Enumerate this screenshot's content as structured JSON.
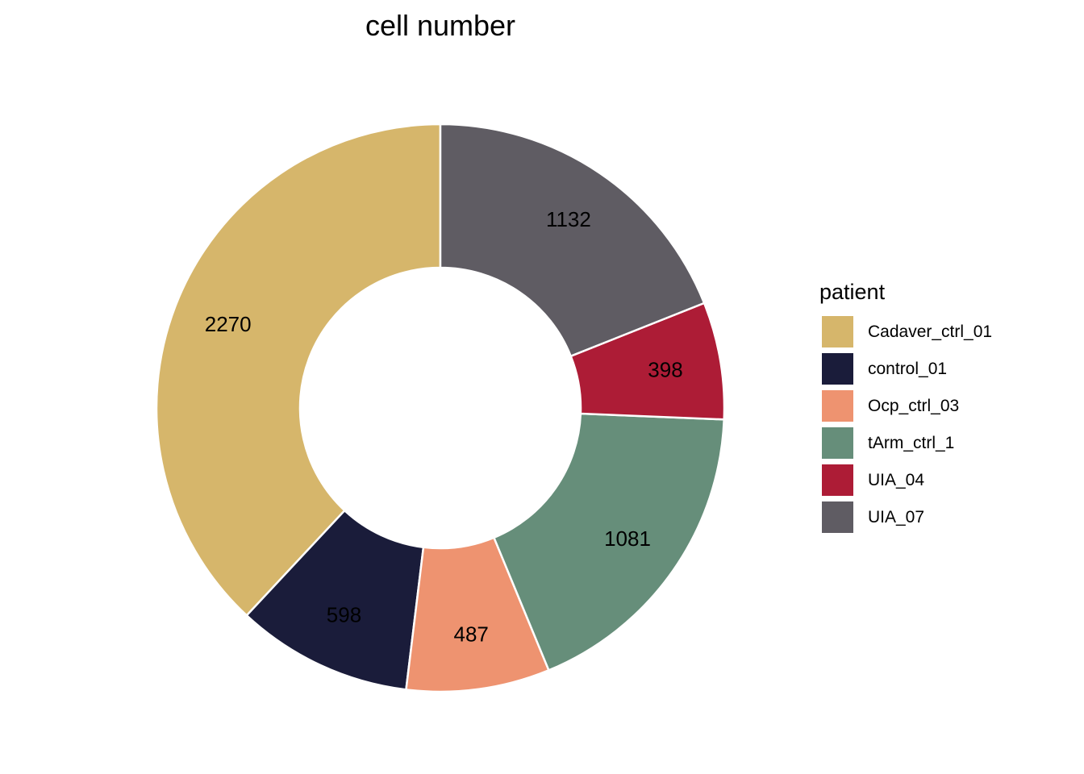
{
  "chart_data": {
    "type": "pie",
    "donut": true,
    "title": "cell number",
    "legend": {
      "title": "patient",
      "position": "right"
    },
    "slice_order_from_top_counterclockwise": true,
    "slices": [
      {
        "name": "Cadaver_ctrl_01",
        "value": 2270,
        "label": "2270",
        "color": "#D6B66B"
      },
      {
        "name": "control_01",
        "value": 598,
        "label": "598",
        "color": "#1A1C3A"
      },
      {
        "name": "Ocp_ctrl_03",
        "value": 487,
        "label": "487",
        "color": "#EE9370"
      },
      {
        "name": "tArm_ctrl_1",
        "value": 1081,
        "label": "1081",
        "color": "#668E7A"
      },
      {
        "name": "UIA_04",
        "value": 398,
        "label": "398",
        "color": "#AD1C36"
      },
      {
        "name": "UIA_07",
        "value": 1132,
        "label": "1132",
        "color": "#5F5C63"
      }
    ]
  }
}
